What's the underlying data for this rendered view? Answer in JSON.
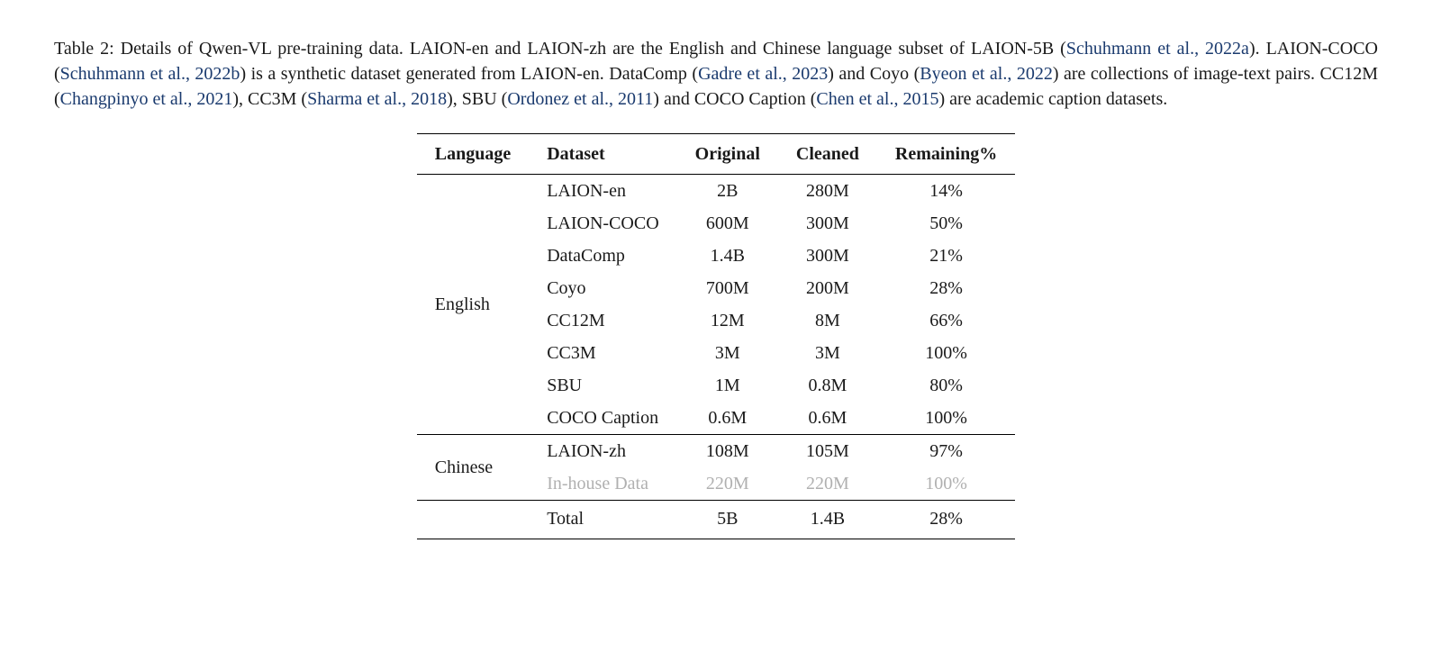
{
  "caption": {
    "lead": "Table 2:  Details of Qwen-VL pre-training data. LAION-en and LAION-zh are the English and Chinese language subset of LAION-5B (",
    "cite1": "Schuhmann et al., 2022a",
    "p2": "). LAION-COCO (",
    "cite2": "Schuhmann et al., 2022b",
    "p3": ") is a synthetic dataset generated from LAION-en. DataComp (",
    "cite3": "Gadre et al., 2023",
    "p4": ") and Coyo (",
    "cite4": "Byeon et al., 2022",
    "p5": ") are collections of image-text pairs. CC12M (",
    "cite5": "Changpinyo et al., 2021",
    "p6": "), CC3M (",
    "cite6": "Sharma et al., 2018",
    "p7": "), SBU (",
    "cite7": "Ordonez et al., 2011",
    "p8": ") and COCO Caption (",
    "cite8": "Chen et al., 2015",
    "p9": ") are academic caption datasets."
  },
  "table": {
    "headers": {
      "language": "Language",
      "dataset": "Dataset",
      "original": "Original",
      "cleaned": "Cleaned",
      "remaining": "Remaining%"
    },
    "groups": {
      "english": "English",
      "chinese": "Chinese"
    },
    "rows": {
      "r0": {
        "dataset": "LAION-en",
        "original": "2B",
        "cleaned": "280M",
        "remaining": "14%"
      },
      "r1": {
        "dataset": "LAION-COCO",
        "original": "600M",
        "cleaned": "300M",
        "remaining": "50%"
      },
      "r2": {
        "dataset": "DataComp",
        "original": "1.4B",
        "cleaned": "300M",
        "remaining": "21%"
      },
      "r3": {
        "dataset": "Coyo",
        "original": "700M",
        "cleaned": "200M",
        "remaining": "28%"
      },
      "r4": {
        "dataset": "CC12M",
        "original": "12M",
        "cleaned": "8M",
        "remaining": "66%"
      },
      "r5": {
        "dataset": "CC3M",
        "original": "3M",
        "cleaned": "3M",
        "remaining": "100%"
      },
      "r6": {
        "dataset": "SBU",
        "original": "1M",
        "cleaned": "0.8M",
        "remaining": "80%"
      },
      "r7": {
        "dataset": "COCO Caption",
        "original": "0.6M",
        "cleaned": "0.6M",
        "remaining": "100%"
      },
      "r8": {
        "dataset": "LAION-zh",
        "original": "108M",
        "cleaned": "105M",
        "remaining": "97%"
      },
      "r9": {
        "dataset": "In-house Data",
        "original": "220M",
        "cleaned": "220M",
        "remaining": "100%"
      },
      "total": {
        "dataset": "Total",
        "original": "5B",
        "cleaned": "1.4B",
        "remaining": "28%"
      }
    },
    "styling": {
      "text_color": "#1a1a1a",
      "cite_color": "#1a3a6e",
      "dimmed_color": "#b0b0b0",
      "background_color": "#ffffff",
      "rule_color": "#000000",
      "font_family": "Palatino",
      "body_fontsize": 20,
      "cell_padding_h": 20,
      "cell_padding_v": 4,
      "top_rule_width": 1.5,
      "mid_rule_width": 1.0
    }
  }
}
